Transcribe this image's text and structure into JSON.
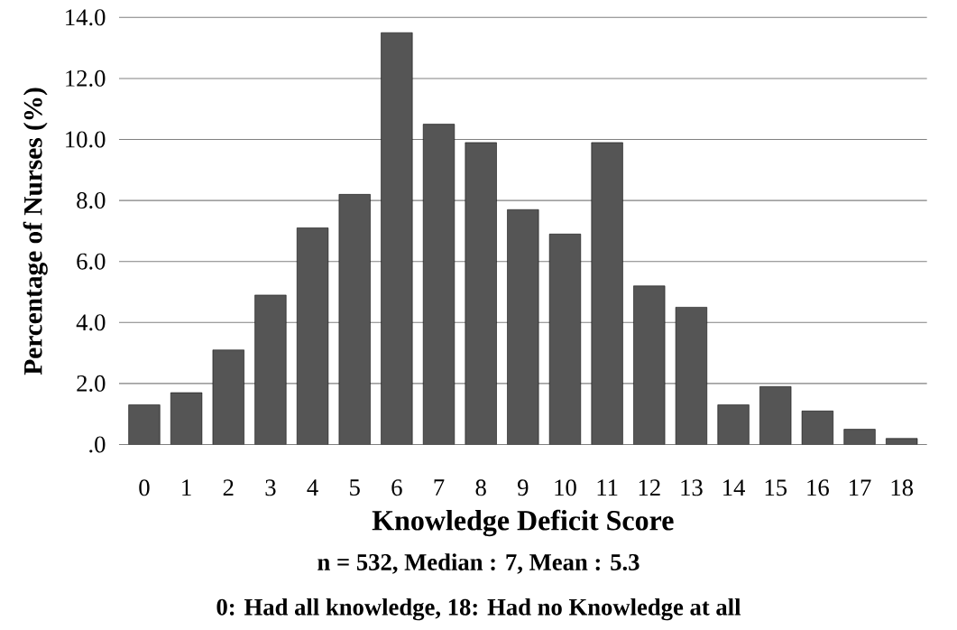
{
  "chart_data": {
    "type": "bar",
    "xlabel": "Knowledge Deficit Score",
    "ylabel": "Percentage of Nurses (%)",
    "categories": [
      "0",
      "1",
      "2",
      "3",
      "4",
      "5",
      "6",
      "7",
      "8",
      "9",
      "10",
      "11",
      "12",
      "13",
      "14",
      "15",
      "16",
      "17",
      "18"
    ],
    "values": [
      1.3,
      1.7,
      3.1,
      4.9,
      7.1,
      8.2,
      13.5,
      10.5,
      9.9,
      7.7,
      6.9,
      9.9,
      5.2,
      4.5,
      1.3,
      1.9,
      1.1,
      0.5,
      0.2
    ],
    "color": "#555555",
    "ylim": [
      0,
      14
    ],
    "yticks": [
      {
        "value": 0,
        "label": ".0"
      },
      {
        "value": 2,
        "label": "2.0"
      },
      {
        "value": 4,
        "label": "4.0"
      },
      {
        "value": 6,
        "label": "6.0"
      },
      {
        "value": 8,
        "label": "8.0"
      },
      {
        "value": 10,
        "label": "10.0"
      },
      {
        "value": 12,
        "label": "12.0"
      },
      {
        "value": 14,
        "label": "14.0"
      }
    ],
    "grid": "y",
    "annotations": [
      "n = 532, Median : 7, Mean : 5.3",
      "0: Had all knowledge, 18: Had no Knowledge at all"
    ]
  }
}
